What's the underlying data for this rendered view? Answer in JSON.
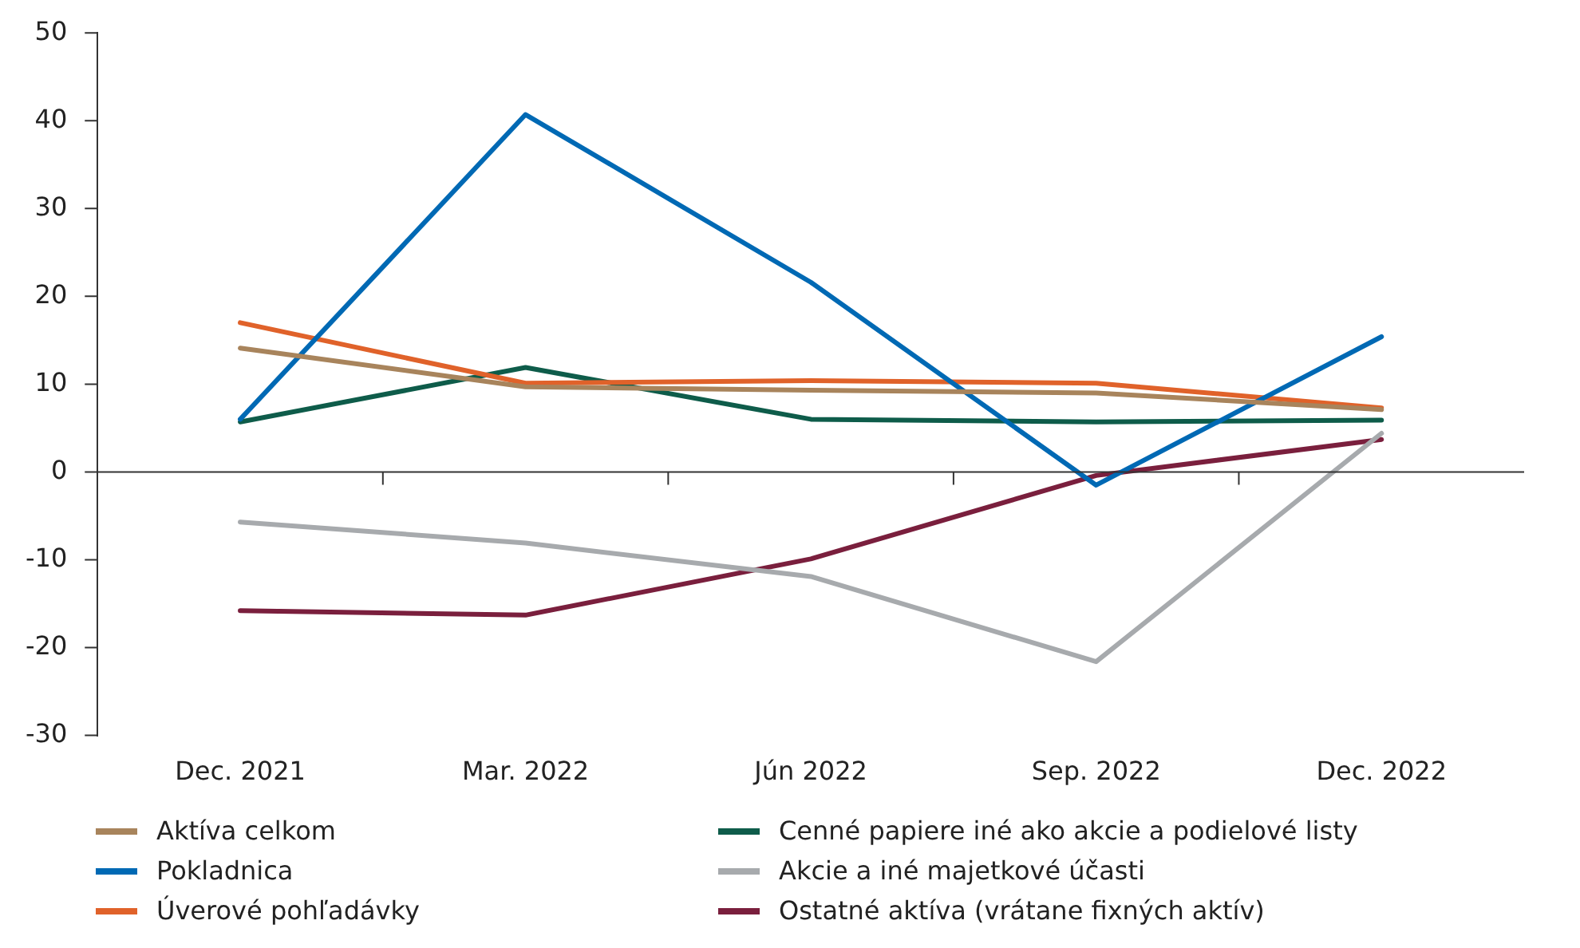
{
  "chart_data": {
    "type": "line",
    "categories": [
      "Dec. 2021",
      "Mar. 2022",
      "Jún 2022",
      "Sep. 2022",
      "Dec. 2022"
    ],
    "series": [
      {
        "name": "Aktíva celkom",
        "color": "#a8845c",
        "values": [
          14.1,
          9.7,
          9.3,
          9.0,
          7.1
        ]
      },
      {
        "name": "Pokladnica",
        "color": "#0069b4",
        "values": [
          6.0,
          40.7,
          21.6,
          -1.5,
          15.4
        ]
      },
      {
        "name": "Úverové pohľadávky",
        "color": "#e0622a",
        "values": [
          17.0,
          10.1,
          10.4,
          10.1,
          7.3
        ]
      },
      {
        "name": "Cenné papiere iné ako akcie a podielové listy",
        "color": "#0e5c4a",
        "values": [
          5.7,
          11.9,
          6.0,
          5.7,
          5.9
        ]
      },
      {
        "name": "Akcie a iné majetkové účasti",
        "color": "#a7aaad",
        "values": [
          -5.7,
          -8.1,
          -11.9,
          -21.6,
          4.4
        ]
      },
      {
        "name": "Ostatné aktíva (vrátane fixných aktív)",
        "color": "#7a1f3d",
        "values": [
          -15.8,
          -16.3,
          -9.9,
          -0.4,
          3.7
        ]
      }
    ],
    "ylim": [
      -30,
      50
    ],
    "yticks": [
      -30,
      -20,
      -10,
      0,
      10,
      20,
      30,
      40,
      50
    ],
    "legend": "bottom",
    "marker": "none",
    "line_style": "solid"
  }
}
